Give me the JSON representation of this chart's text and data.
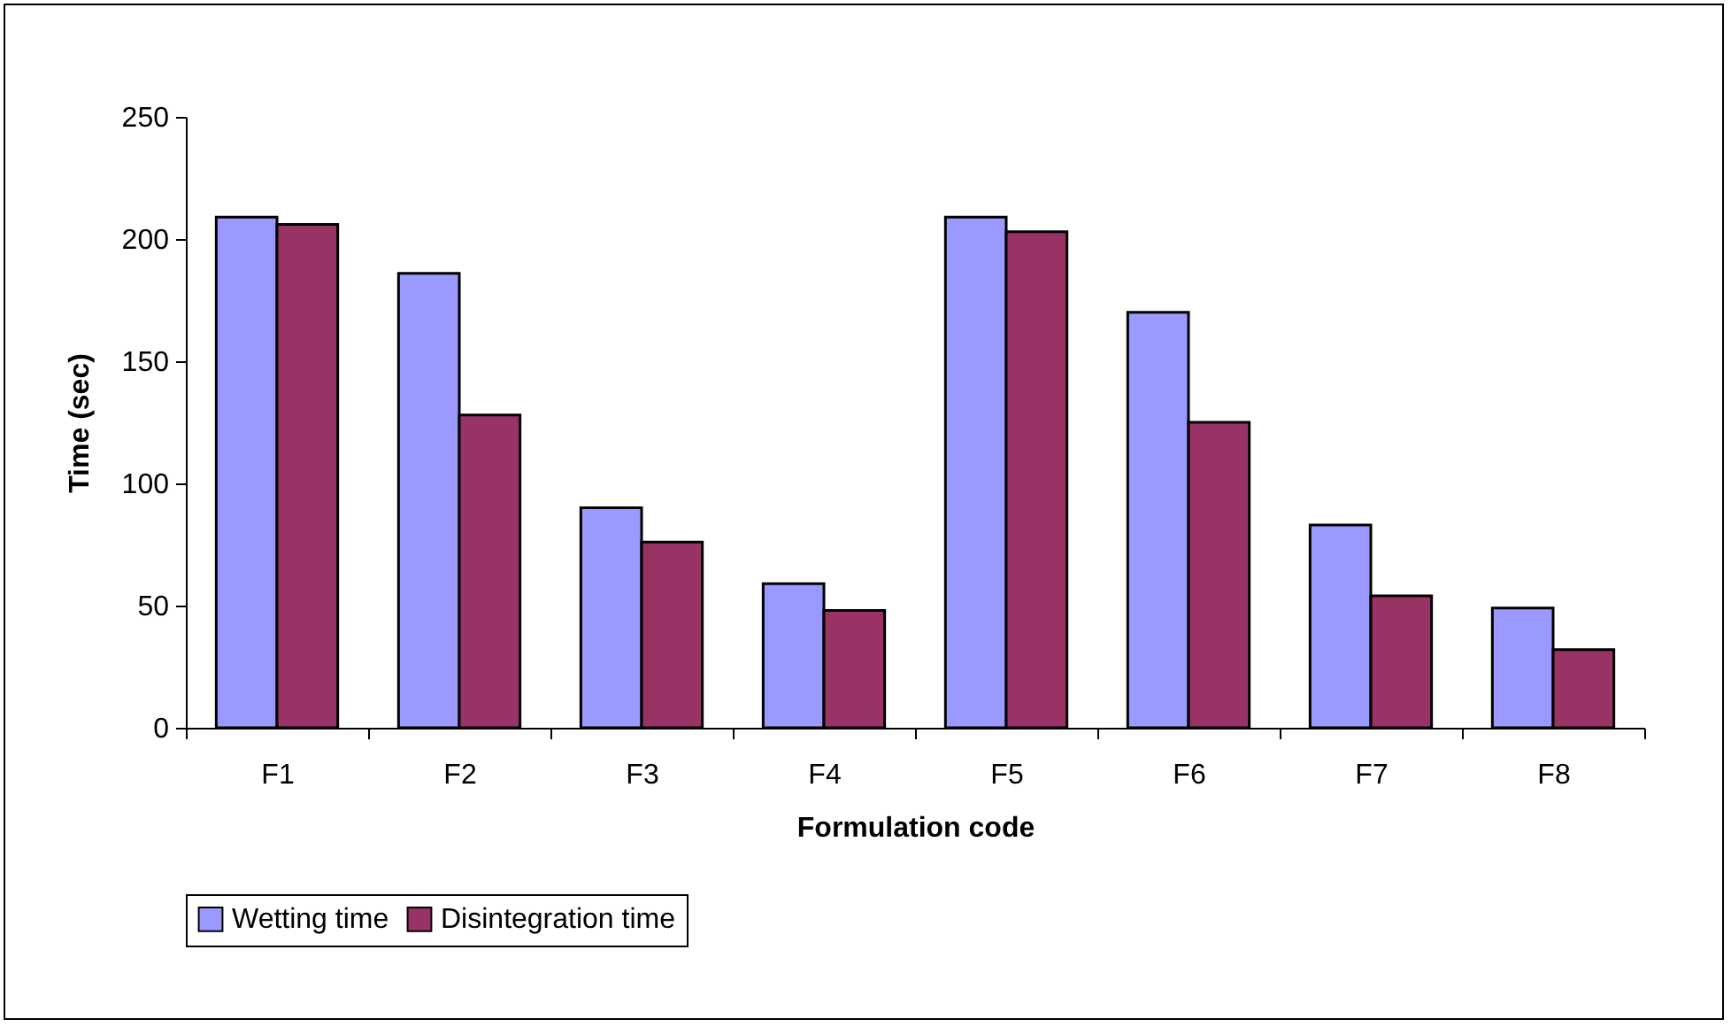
{
  "chart_data": {
    "type": "bar",
    "xlabel": "Formulation code",
    "ylabel": "Time (sec)",
    "categories": [
      "F1",
      "F2",
      "F3",
      "F4",
      "F5",
      "F6",
      "F7",
      "F8"
    ],
    "series": [
      {
        "name": "Wetting time",
        "color": "#9999ff",
        "values": [
          209,
          186,
          90,
          59,
          209,
          170,
          83,
          49
        ]
      },
      {
        "name": "Disintegration time",
        "color": "#993366",
        "values": [
          206,
          128,
          76,
          48,
          203,
          125,
          54,
          32
        ]
      }
    ],
    "ylim": [
      0,
      250
    ],
    "yticks": [
      0,
      50,
      100,
      150,
      200,
      250
    ],
    "grid": false,
    "legend": "bottom"
  }
}
